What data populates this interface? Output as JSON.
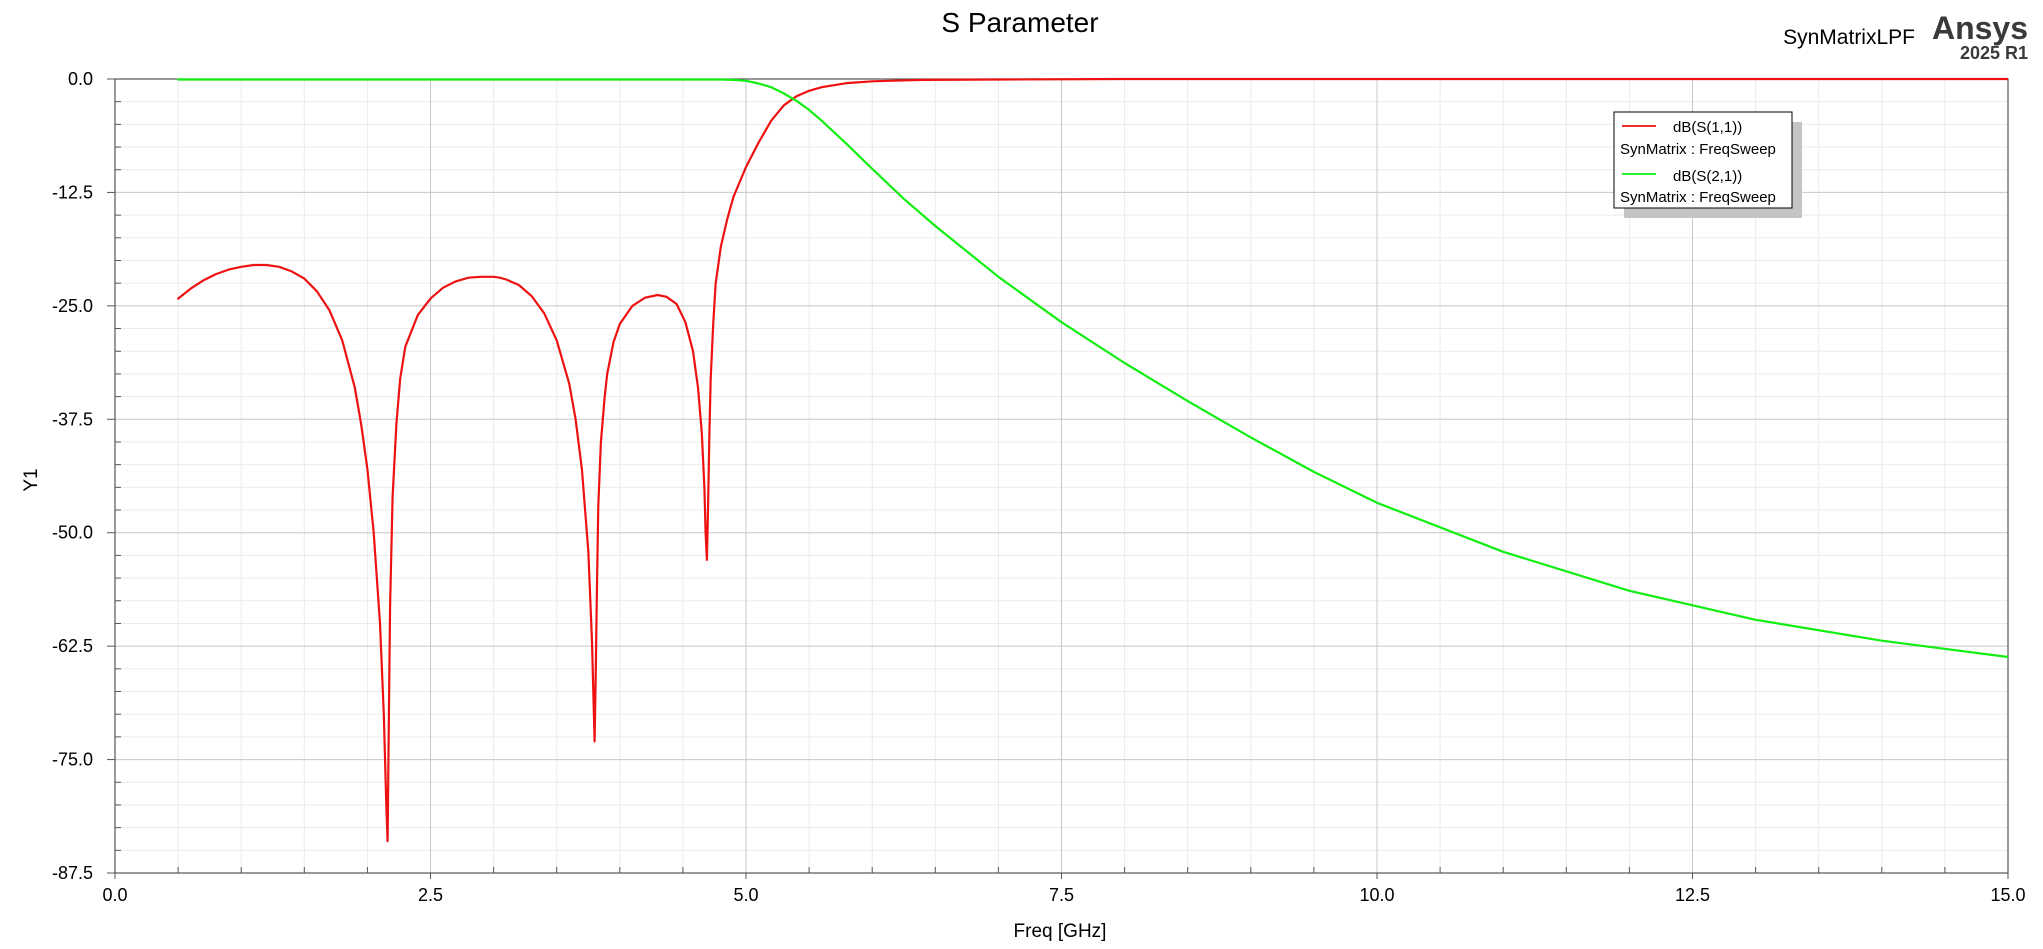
{
  "header": {
    "title": "S Parameter",
    "project": "SynMatrixLPF",
    "brand": "Ansys",
    "version": "2025 R1"
  },
  "colors": {
    "s11": "#ee1111",
    "s21": "#11ee11"
  },
  "chart_data": {
    "type": "line",
    "title": "S Parameter",
    "xlabel": "Freq [GHz]",
    "ylabel": "Y1",
    "xlim": [
      0,
      15
    ],
    "ylim": [
      -87.5,
      0
    ],
    "xticks": [
      "0.0",
      "2.5",
      "5.0",
      "7.5",
      "10.0",
      "12.5",
      "15.0"
    ],
    "yticks": [
      "0.0",
      "-12.5",
      "-25.0",
      "-37.5",
      "-50.0",
      "-62.5",
      "-75.0",
      "-87.5"
    ],
    "grid": true,
    "legend_position": "top-right",
    "legend": [
      {
        "name": "dB(S(1,1))",
        "source": "SynMatrix : FreqSweep",
        "color": "#ee1111"
      },
      {
        "name": "dB(S(2,1))",
        "source": "SynMatrix : FreqSweep",
        "color": "#11ee11"
      }
    ],
    "series": [
      {
        "name": "dB(S(1,1))",
        "color": "#ee1111",
        "x": [
          0.5,
          0.6,
          0.7,
          0.8,
          0.9,
          1.0,
          1.1,
          1.2,
          1.3,
          1.4,
          1.5,
          1.6,
          1.7,
          1.8,
          1.9,
          1.95,
          2.0,
          2.05,
          2.1,
          2.13,
          2.15,
          2.16,
          2.17,
          2.18,
          2.2,
          2.23,
          2.26,
          2.3,
          2.4,
          2.5,
          2.6,
          2.7,
          2.8,
          2.9,
          3.0,
          3.05,
          3.1,
          3.2,
          3.3,
          3.4,
          3.5,
          3.6,
          3.65,
          3.7,
          3.75,
          3.78,
          3.8,
          3.81,
          3.82,
          3.83,
          3.85,
          3.88,
          3.9,
          3.95,
          4.0,
          4.1,
          4.2,
          4.3,
          4.37,
          4.45,
          4.52,
          4.58,
          4.62,
          4.65,
          4.67,
          4.68,
          4.69,
          4.7,
          4.71,
          4.72,
          4.74,
          4.76,
          4.8,
          4.85,
          4.9,
          5.0,
          5.1,
          5.2,
          5.3,
          5.4,
          5.5,
          5.6,
          5.8,
          6.0,
          6.4,
          7.0,
          8.0,
          10.0,
          12.0,
          15.0
        ],
        "y": [
          -24.2,
          -23.1,
          -22.2,
          -21.5,
          -21.0,
          -20.7,
          -20.5,
          -20.5,
          -20.7,
          -21.2,
          -22.0,
          -23.4,
          -25.5,
          -28.8,
          -34.0,
          -38.0,
          -43.0,
          -50.0,
          -60.0,
          -70.0,
          -80.0,
          -84.0,
          -70.0,
          -58.0,
          -46.0,
          -38.0,
          -33.0,
          -29.5,
          -26.0,
          -24.2,
          -23.0,
          -22.3,
          -21.9,
          -21.8,
          -21.8,
          -21.9,
          -22.1,
          -22.7,
          -23.9,
          -25.8,
          -28.8,
          -33.6,
          -37.5,
          -43.0,
          -52.0,
          -62.0,
          -73.0,
          -65.0,
          -55.0,
          -47.0,
          -40.0,
          -35.0,
          -32.5,
          -29.0,
          -27.0,
          -25.0,
          -24.1,
          -23.8,
          -24.0,
          -24.8,
          -26.8,
          -30.0,
          -34.0,
          -39.0,
          -45.0,
          -50.0,
          -53.0,
          -47.0,
          -39.0,
          -33.0,
          -27.0,
          -22.5,
          -18.5,
          -15.5,
          -13.0,
          -9.7,
          -7.0,
          -4.6,
          -2.9,
          -1.9,
          -1.3,
          -0.9,
          -0.45,
          -0.25,
          -0.1,
          -0.05,
          0,
          0,
          0,
          0
        ]
      },
      {
        "name": "dB(S(2,1))",
        "color": "#11ee11",
        "x": [
          0.5,
          1.0,
          2.0,
          3.0,
          4.0,
          4.5,
          4.8,
          4.9,
          5.0,
          5.1,
          5.2,
          5.3,
          5.4,
          5.5,
          5.6,
          5.8,
          6.0,
          6.25,
          6.5,
          7.0,
          7.5,
          8.0,
          8.5,
          9.0,
          9.5,
          10.0,
          11.0,
          12.0,
          13.0,
          14.0,
          15.0
        ],
        "y": [
          -0.05,
          -0.05,
          -0.05,
          -0.05,
          -0.05,
          -0.05,
          -0.05,
          -0.1,
          -0.2,
          -0.5,
          -0.9,
          -1.6,
          -2.4,
          -3.4,
          -4.6,
          -7.2,
          -9.9,
          -13.2,
          -16.2,
          -21.8,
          -26.8,
          -31.3,
          -35.5,
          -39.5,
          -43.3,
          -46.7,
          -52.1,
          -56.4,
          -59.6,
          -61.9,
          -63.7
        ]
      }
    ]
  }
}
